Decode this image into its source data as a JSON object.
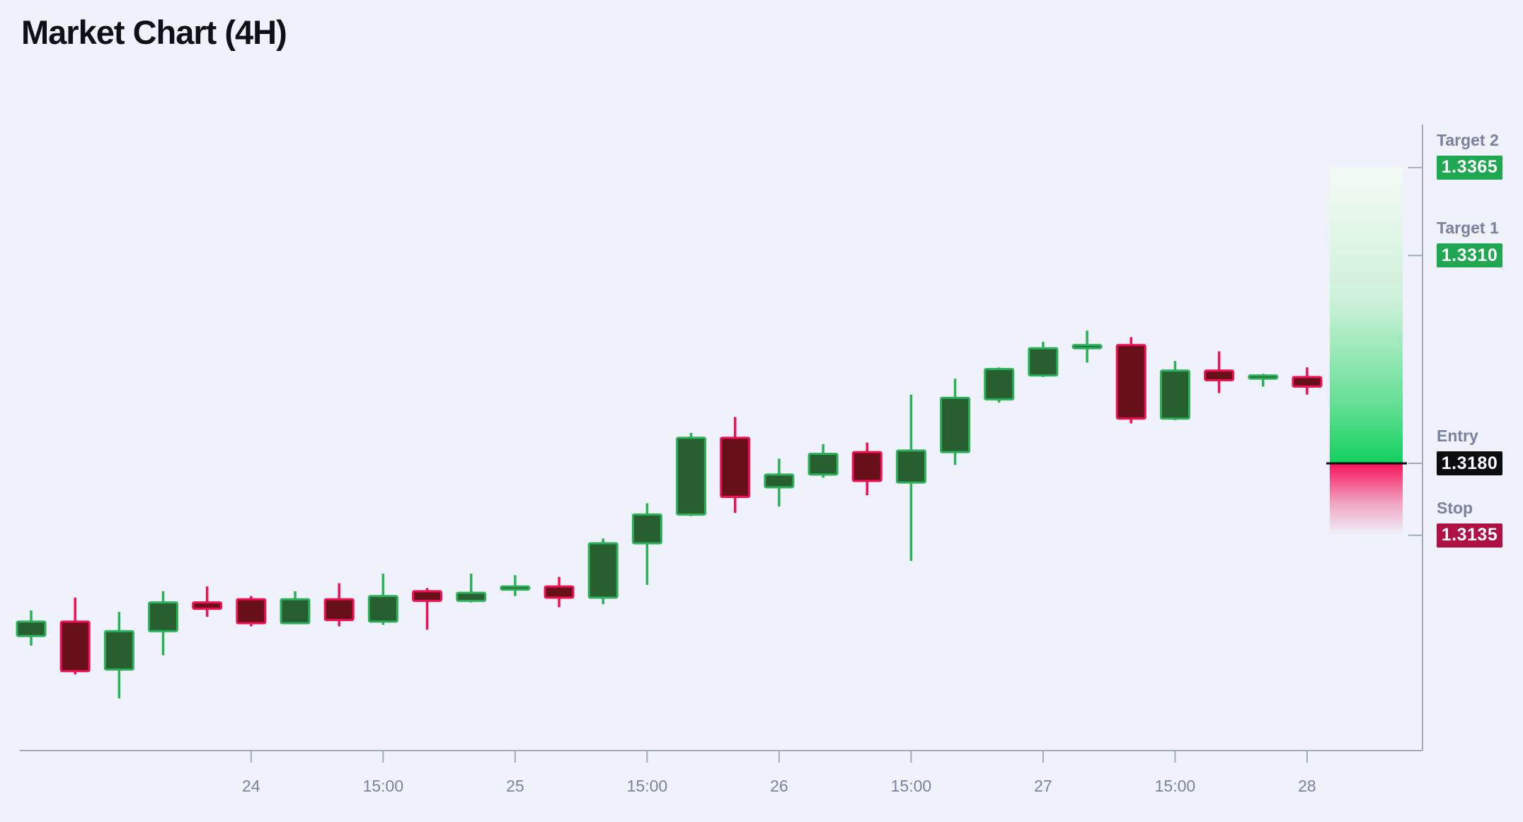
{
  "title": "Market Chart (4H)",
  "chart_data": {
    "type": "candlestick",
    "timeframe": "4H",
    "x_ticks": [
      {
        "candle": 5,
        "label": "24"
      },
      {
        "candle": 8,
        "label": "15:00"
      },
      {
        "candle": 11,
        "label": "25"
      },
      {
        "candle": 14,
        "label": "15:00"
      },
      {
        "candle": 17,
        "label": "26"
      },
      {
        "candle": 20,
        "label": "15:00"
      },
      {
        "candle": 23,
        "label": "27"
      },
      {
        "candle": 26,
        "label": "15:00"
      },
      {
        "candle": 29,
        "label": "28"
      }
    ],
    "candles": [
      {
        "o": 1.3072,
        "h": 1.3088,
        "l": 1.3066,
        "c": 1.3081
      },
      {
        "o": 1.3081,
        "h": 1.3096,
        "l": 1.3048,
        "c": 1.305
      },
      {
        "o": 1.3051,
        "h": 1.3087,
        "l": 1.3033,
        "c": 1.3075
      },
      {
        "o": 1.3075,
        "h": 1.31,
        "l": 1.306,
        "c": 1.3093
      },
      {
        "o": 1.3093,
        "h": 1.3103,
        "l": 1.3084,
        "c": 1.3089
      },
      {
        "o": 1.3095,
        "h": 1.3097,
        "l": 1.3078,
        "c": 1.308
      },
      {
        "o": 1.308,
        "h": 1.31,
        "l": 1.308,
        "c": 1.3095
      },
      {
        "o": 1.3095,
        "h": 1.3105,
        "l": 1.3078,
        "c": 1.3082
      },
      {
        "o": 1.3081,
        "h": 1.3111,
        "l": 1.3079,
        "c": 1.3097
      },
      {
        "o": 1.31,
        "h": 1.3102,
        "l": 1.3076,
        "c": 1.3094
      },
      {
        "o": 1.3094,
        "h": 1.3111,
        "l": 1.3093,
        "c": 1.3099
      },
      {
        "o": 1.3101,
        "h": 1.311,
        "l": 1.3097,
        "c": 1.3103
      },
      {
        "o": 1.3103,
        "h": 1.3109,
        "l": 1.309,
        "c": 1.3096
      },
      {
        "o": 1.3096,
        "h": 1.3133,
        "l": 1.3092,
        "c": 1.313
      },
      {
        "o": 1.313,
        "h": 1.3155,
        "l": 1.3104,
        "c": 1.3148
      },
      {
        "o": 1.3148,
        "h": 1.3199,
        "l": 1.3147,
        "c": 1.3196
      },
      {
        "o": 1.3196,
        "h": 1.3209,
        "l": 1.3149,
        "c": 1.3159
      },
      {
        "o": 1.3165,
        "h": 1.3183,
        "l": 1.3153,
        "c": 1.3173
      },
      {
        "o": 1.3173,
        "h": 1.3192,
        "l": 1.3171,
        "c": 1.3186
      },
      {
        "o": 1.3187,
        "h": 1.3193,
        "l": 1.316,
        "c": 1.3169
      },
      {
        "o": 1.3168,
        "h": 1.3223,
        "l": 1.3119,
        "c": 1.3188
      },
      {
        "o": 1.3187,
        "h": 1.3233,
        "l": 1.3179,
        "c": 1.3221
      },
      {
        "o": 1.322,
        "h": 1.324,
        "l": 1.3218,
        "c": 1.3239
      },
      {
        "o": 1.3235,
        "h": 1.3256,
        "l": 1.3234,
        "c": 1.3252
      },
      {
        "o": 1.3252,
        "h": 1.3263,
        "l": 1.3243,
        "c": 1.3254
      },
      {
        "o": 1.3254,
        "h": 1.3259,
        "l": 1.3205,
        "c": 1.3208
      },
      {
        "o": 1.3208,
        "h": 1.3244,
        "l": 1.3207,
        "c": 1.3238
      },
      {
        "o": 1.3238,
        "h": 1.325,
        "l": 1.3224,
        "c": 1.3232
      },
      {
        "o": 1.3233,
        "h": 1.3236,
        "l": 1.3228,
        "c": 1.3235
      },
      {
        "o": 1.3234,
        "h": 1.324,
        "l": 1.3223,
        "c": 1.3228
      }
    ],
    "levels": {
      "target2": {
        "label": "Target 2",
        "price": "1.3365",
        "badge_color": "#1fa751"
      },
      "target1": {
        "label": "Target 1",
        "price": "1.3310",
        "badge_color": "#1fa751"
      },
      "entry": {
        "label": "Entry",
        "price": "1.3180",
        "badge_color": "#0c0c0e"
      },
      "stop": {
        "label": "Stop",
        "price": "1.3135",
        "badge_color": "#b01145"
      }
    },
    "colors": {
      "up_border": "#2cb05a",
      "up_fill": "#275f31",
      "down_border": "#f01053",
      "down_fill": "#681019",
      "zone_green": "#13d05e",
      "zone_pink": "#f7125a",
      "entry_line": "#0c0c0e",
      "axis": "#a3a9b8",
      "tick_label": "#7c819c"
    },
    "legend_position": "right",
    "grid": false
  }
}
